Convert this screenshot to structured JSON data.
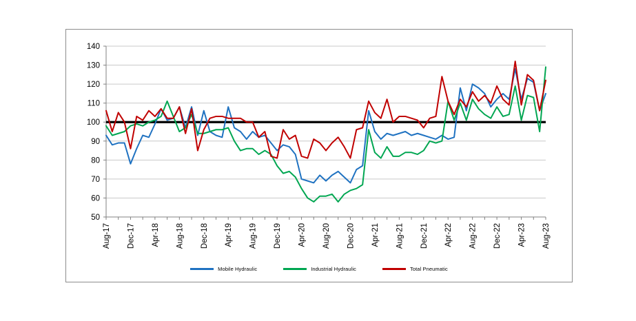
{
  "chart_data": {
    "type": "line",
    "title": "",
    "xlabel": "",
    "ylabel": "",
    "ylim": [
      50,
      140
    ],
    "y_ticks": [
      50,
      60,
      70,
      80,
      90,
      100,
      110,
      120,
      130,
      140
    ],
    "baseline": 100,
    "grid": true,
    "legend_position": "bottom",
    "x_tick_interval": 2,
    "x_label_interval": 4,
    "x_tick_labels_shown": [
      "Aug-17",
      "Dec-17",
      "Apr-18",
      "Aug-18",
      "Dec-18",
      "Apr-19",
      "Aug-19",
      "Dec-19",
      "Apr-20",
      "Aug-20",
      "Dec-20",
      "Apr-21",
      "Aug-21",
      "Dec-21",
      "Apr-22",
      "Aug-22",
      "Dec-22",
      "Apr-23",
      "Aug-23"
    ],
    "x_labels": [
      "Aug-17",
      "Sep-17",
      "Oct-17",
      "Nov-17",
      "Dec-17",
      "Jan-18",
      "Feb-18",
      "Mar-18",
      "Apr-18",
      "May-18",
      "Jun-18",
      "Jul-18",
      "Aug-18",
      "Sep-18",
      "Oct-18",
      "Nov-18",
      "Dec-18",
      "Jan-19",
      "Feb-19",
      "Mar-19",
      "Apr-19",
      "May-19",
      "Jun-19",
      "Jul-19",
      "Aug-19",
      "Sep-19",
      "Oct-19",
      "Nov-19",
      "Dec-19",
      "Jan-20",
      "Feb-20",
      "Mar-20",
      "Apr-20",
      "May-20",
      "Jun-20",
      "Jul-20",
      "Aug-20",
      "Sep-20",
      "Oct-20",
      "Nov-20",
      "Dec-20",
      "Jan-21",
      "Feb-21",
      "Mar-21",
      "Apr-21",
      "May-21",
      "Jun-21",
      "Jul-21",
      "Aug-21",
      "Sep-21",
      "Oct-21",
      "Nov-21",
      "Dec-21",
      "Jan-22",
      "Feb-22",
      "Mar-22",
      "Apr-22",
      "May-22",
      "Jun-22",
      "Jul-22",
      "Aug-22",
      "Sep-22",
      "Oct-22",
      "Nov-22",
      "Dec-22",
      "Jan-23",
      "Feb-23",
      "Mar-23",
      "Apr-23",
      "May-23",
      "Jun-23",
      "Jul-23",
      "Aug-23"
    ],
    "series": [
      {
        "name": "Mobile Hydraulic",
        "color": "#1F72C1",
        "values": [
          93,
          88,
          89,
          89,
          78,
          86,
          93,
          92,
          99,
          107,
          101,
          102,
          108,
          97,
          108,
          93,
          106,
          95,
          93,
          92,
          108,
          97,
          95,
          91,
          95,
          92,
          93,
          89,
          85,
          88,
          87,
          83,
          70,
          69,
          68,
          72,
          69,
          72,
          74,
          71,
          68,
          75,
          77,
          106,
          95,
          91,
          94,
          93,
          94,
          95,
          93,
          94,
          93,
          92,
          91,
          93,
          91,
          92,
          118,
          106,
          120,
          118,
          115,
          108,
          112,
          115,
          112,
          128,
          112,
          123,
          121,
          106,
          115
        ]
      },
      {
        "name": "Industrial Hydraulic",
        "color": "#00A651",
        "values": [
          98,
          93,
          94,
          95,
          98,
          99,
          98,
          100,
          101,
          103,
          111,
          103,
          95,
          97,
          104,
          94,
          94,
          95,
          96,
          96,
          97,
          90,
          85,
          86,
          86,
          83,
          85,
          83,
          77,
          73,
          74,
          71,
          65,
          60,
          58,
          61,
          61,
          62,
          58,
          62,
          64,
          65,
          67,
          96,
          84,
          81,
          87,
          82,
          82,
          84,
          84,
          83,
          85,
          90,
          89,
          90,
          111,
          101,
          110,
          101,
          112,
          107,
          104,
          102,
          108,
          103,
          104,
          119,
          101,
          114,
          113,
          95,
          129
        ]
      },
      {
        "name": "Total Pneumatic",
        "color": "#C00000",
        "values": [
          106,
          95,
          105,
          100,
          86,
          103,
          101,
          106,
          103,
          107,
          102,
          102,
          108,
          94,
          107,
          85,
          96,
          102,
          103,
          103,
          102,
          102,
          102,
          100,
          100,
          92,
          95,
          82,
          81,
          96,
          91,
          93,
          82,
          81,
          91,
          89,
          85,
          89,
          92,
          87,
          81,
          96,
          97,
          111,
          105,
          102,
          112,
          100,
          103,
          103,
          102,
          101,
          97,
          102,
          103,
          124,
          111,
          104,
          112,
          108,
          116,
          111,
          114,
          110,
          119,
          112,
          109,
          132,
          109,
          125,
          122,
          106,
          122
        ]
      }
    ],
    "colors": {
      "grid": "#c9c9c9",
      "axis": "#808080",
      "baseline": "#000000",
      "frame_border": "#8c8c8c",
      "tick_label": "#000000"
    }
  }
}
